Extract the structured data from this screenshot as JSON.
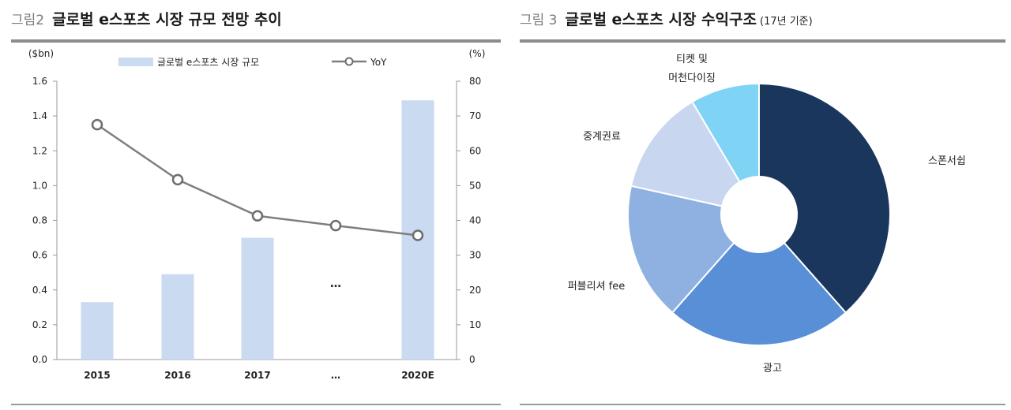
{
  "fig2": {
    "prefix": "그림2",
    "title": "글로벌 e스포츠 시장 규모 전망 추이"
  },
  "fig3": {
    "prefix": "그림 3",
    "title": "글로벌 e스포츠 시장 수익구조",
    "subtitle": "(17년 기준)"
  },
  "chart_data": [
    {
      "type": "bar",
      "title": "글로벌 e스포츠 시장 규모 전망 추이",
      "categories": [
        "2015",
        "2016",
        "2017",
        "…",
        "2020E"
      ],
      "y_unit_left": "($bn)",
      "y_unit_right": "(%)",
      "ylim_left": [
        0,
        1.6
      ],
      "ylim_right": [
        0,
        80
      ],
      "yticks_left": [
        "0.0",
        "0.2",
        "0.4",
        "0.6",
        "0.8",
        "1.0",
        "1.2",
        "1.4",
        "1.6"
      ],
      "yticks_right": [
        "0",
        "10",
        "20",
        "30",
        "40",
        "50",
        "60",
        "70",
        "80"
      ],
      "ellipsis_label": "…",
      "legend_position": "top",
      "grid": false,
      "series": [
        {
          "name": "글로벌 e스포츠 시장 규모",
          "type": "bar",
          "axis": "left",
          "color": "#c9daf1",
          "values": [
            0.33,
            0.49,
            0.7,
            null,
            1.49
          ]
        },
        {
          "name": "YoY",
          "type": "line",
          "axis": "right",
          "color": "#7f7f7f",
          "values": [
            67.5,
            51.7,
            41.3,
            38.5,
            35.7
          ]
        }
      ]
    },
    {
      "type": "pie",
      "title": "글로벌 e스포츠 시장 수익구조",
      "donut": true,
      "slices": [
        {
          "label": "스폰서쉽",
          "value": 38.5,
          "color": "#1b365d"
        },
        {
          "label": "광고",
          "value": 23.0,
          "color": "#588fd6"
        },
        {
          "label": "퍼블리셔 fee",
          "value": 17.0,
          "color": "#8eb1e1"
        },
        {
          "label": "중계권료",
          "value": 13.0,
          "color": "#c8d7ef"
        },
        {
          "label": "티켓 및\n머천다이징",
          "value": 8.5,
          "color": "#7fd3f5"
        }
      ]
    }
  ]
}
